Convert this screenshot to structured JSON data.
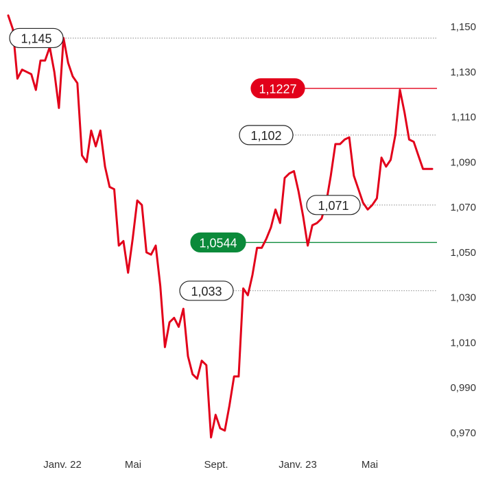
{
  "chart_data": {
    "type": "line",
    "x_ticks": [
      "Janv. 22",
      "Mai",
      "Sept.",
      "Janv. 23",
      "Mai"
    ],
    "y_ticks": [
      "1,150",
      "1,130",
      "1,110",
      "1,090",
      "1,070",
      "1,050",
      "1,030",
      "1,010",
      "0,990",
      "0,970"
    ],
    "ylim": [
      0.963,
      1.158
    ],
    "grid": false,
    "series": [
      {
        "color": "#e2001a",
        "x": [
          0,
          1,
          2,
          3,
          4,
          5,
          6,
          7,
          8,
          9,
          10,
          11,
          12,
          13,
          14,
          15,
          16,
          17,
          18,
          19,
          20,
          21,
          22,
          23,
          24,
          25,
          26,
          27,
          28,
          29,
          30,
          31,
          32,
          33,
          34,
          35,
          36,
          37,
          38,
          39,
          40,
          41,
          42,
          43,
          44,
          45,
          46,
          47,
          48,
          49,
          50,
          51,
          52,
          53,
          54,
          55,
          56,
          57,
          58,
          59,
          60,
          61,
          62,
          63,
          64,
          65,
          66,
          67,
          68,
          69,
          70,
          71,
          72,
          73,
          74,
          75,
          76,
          77,
          78,
          79,
          80,
          81,
          82,
          83,
          84,
          85,
          86,
          87,
          88,
          89,
          90,
          91,
          92
        ],
        "values": [
          1.155,
          1.149,
          1.127,
          1.131,
          1.13,
          1.129,
          1.122,
          1.135,
          1.135,
          1.141,
          1.13,
          1.114,
          1.145,
          1.134,
          1.128,
          1.125,
          1.093,
          1.09,
          1.104,
          1.097,
          1.104,
          1.088,
          1.079,
          1.078,
          1.053,
          1.055,
          1.041,
          1.056,
          1.073,
          1.071,
          1.05,
          1.049,
          1.053,
          1.035,
          1.008,
          1.019,
          1.021,
          1.017,
          1.025,
          1.004,
          0.996,
          0.994,
          1.002,
          1.0,
          0.968,
          0.978,
          0.972,
          0.971,
          0.982,
          0.995,
          0.995,
          1.034,
          1.031,
          1.04,
          1.052,
          1.052,
          1.056,
          1.061,
          1.069,
          1.063,
          1.083,
          1.085,
          1.086,
          1.077,
          1.066,
          1.053,
          1.062,
          1.063,
          1.065,
          1.072,
          1.084,
          1.098,
          1.098,
          1.1,
          1.101,
          1.084,
          1.078,
          1.072,
          1.069,
          1.071,
          1.074,
          1.092,
          1.088,
          1.091,
          1.102,
          1.122,
          1.112,
          1.1,
          1.099,
          1.093,
          1.087,
          1.087,
          1.087
        ]
      }
    ],
    "annotations": [
      {
        "label": "1,145",
        "value": 1.145,
        "style": "outline",
        "line": "dotted"
      },
      {
        "label": "1,1227",
        "value": 1.1227,
        "style": "red",
        "line": "solid-red"
      },
      {
        "label": "1,102",
        "value": 1.102,
        "style": "outline",
        "line": "dotted"
      },
      {
        "label": "1,071",
        "value": 1.071,
        "style": "outline",
        "line": "dotted"
      },
      {
        "label": "1,0544",
        "value": 1.0544,
        "style": "green",
        "line": "solid-green"
      },
      {
        "label": "1,033",
        "value": 1.033,
        "style": "outline",
        "line": "dotted"
      }
    ],
    "colors": {
      "line": "#e2001a",
      "high": "#e2001a",
      "low": "#0b8a3a",
      "dotted": "#8a8a8a"
    }
  }
}
